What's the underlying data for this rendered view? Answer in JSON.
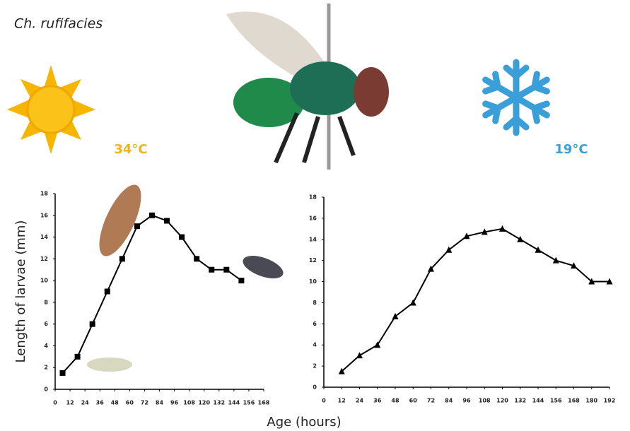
{
  "title": "Ch. rufifacies",
  "x_label": "Age (hours)",
  "chart_data": [
    {
      "type": "line",
      "annotation": "34°C",
      "annotation_color": "#efb31c",
      "y_label": "Length of larvae (mm)",
      "marker": "square",
      "color": "#000000",
      "x": [
        6,
        18,
        30,
        42,
        54,
        66,
        78,
        90,
        102,
        114,
        126,
        138,
        150
      ],
      "values": [
        1.5,
        3,
        6,
        9,
        12,
        15,
        16,
        15.5,
        14,
        12,
        11,
        11,
        10
      ],
      "xlim": [
        0,
        168
      ],
      "xticks": [
        0,
        12,
        24,
        36,
        48,
        60,
        72,
        84,
        96,
        108,
        120,
        132,
        144,
        156,
        168
      ],
      "ylim": [
        0,
        18
      ],
      "yticks": [
        0,
        2,
        4,
        6,
        8,
        10,
        12,
        14,
        16,
        18
      ]
    },
    {
      "type": "line",
      "annotation": "19°C",
      "annotation_color": "#3b9fd8",
      "marker": "triangle",
      "color": "#000000",
      "x": [
        12,
        24,
        36,
        48,
        60,
        72,
        84,
        96,
        108,
        120,
        132,
        144,
        156,
        168,
        180,
        192
      ],
      "values": [
        1.5,
        3,
        4,
        6.7,
        8,
        11.2,
        13,
        14.3,
        14.7,
        15,
        14,
        13,
        12,
        11.5,
        10,
        10
      ],
      "xlim": [
        0,
        192
      ],
      "xticks": [
        0,
        12,
        24,
        36,
        48,
        60,
        72,
        84,
        96,
        108,
        120,
        132,
        144,
        156,
        168,
        180,
        192
      ],
      "ylim": [
        0,
        18
      ],
      "yticks": [
        0,
        2,
        4,
        6,
        8,
        10,
        12,
        14,
        16,
        18
      ]
    }
  ]
}
